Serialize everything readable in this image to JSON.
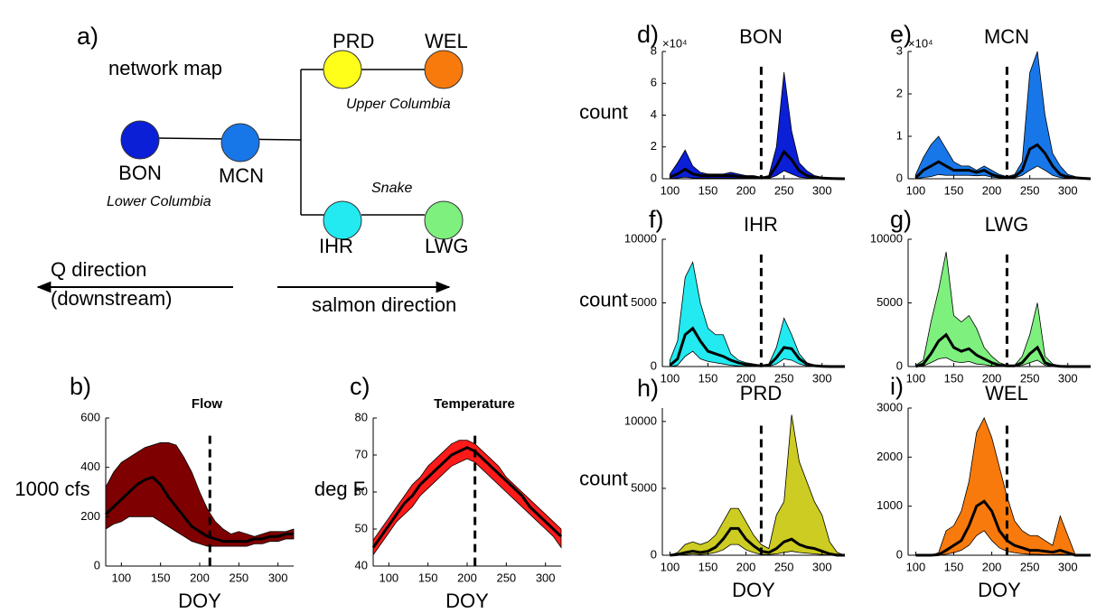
{
  "network_map": {
    "label": "a)",
    "title": "network map",
    "nodes": [
      {
        "label": "BON",
        "color": "#0a1fd6"
      },
      {
        "label": "MCN",
        "color": "#1877e8"
      },
      {
        "label": "PRD",
        "color": "#ffff1a"
      },
      {
        "label": "WEL",
        "color": "#f97a0c"
      },
      {
        "label": "IHR",
        "color": "#22eaf0"
      },
      {
        "label": "LWG",
        "color": "#7ef07e"
      }
    ],
    "regions": [
      "Lower Columbia",
      "Upper Columbia",
      "Snake"
    ],
    "arrows": [
      "Q direction",
      "(downstream)",
      "salmon direction"
    ]
  },
  "chart_data": [
    {
      "type": "band",
      "label": "b)",
      "title": "Flow",
      "ylabel": "1000 cfs",
      "xlabel": "DOY",
      "color": "#7f0000",
      "x": [
        80,
        90,
        100,
        110,
        120,
        130,
        140,
        150,
        160,
        170,
        180,
        190,
        200,
        210,
        220,
        230,
        240,
        250,
        260,
        270,
        280,
        290,
        300,
        310,
        320
      ],
      "upper": [
        320,
        380,
        420,
        440,
        460,
        480,
        490,
        500,
        500,
        490,
        440,
        380,
        300,
        230,
        180,
        150,
        130,
        140,
        130,
        120,
        130,
        140,
        140,
        140,
        150
      ],
      "median": [
        210,
        240,
        270,
        300,
        330,
        350,
        360,
        330,
        280,
        240,
        200,
        160,
        140,
        120,
        110,
        100,
        100,
        100,
        100,
        110,
        110,
        120,
        120,
        130,
        130
      ],
      "lower": [
        150,
        170,
        180,
        200,
        200,
        200,
        200,
        180,
        160,
        140,
        120,
        100,
        90,
        80,
        80,
        80,
        80,
        80,
        80,
        90,
        90,
        100,
        100,
        110,
        110
      ],
      "vline": 213,
      "xlim": [
        80,
        320
      ],
      "xticks": [
        100,
        150,
        200,
        250,
        300
      ],
      "ylim": [
        0,
        600
      ],
      "yticks": [
        0,
        200,
        400,
        600
      ]
    },
    {
      "type": "band",
      "label": "c)",
      "title": "Temperature",
      "ylabel": "deg F",
      "xlabel": "DOY",
      "color": "#ff1a1a",
      "x": [
        80,
        90,
        100,
        110,
        120,
        130,
        140,
        150,
        160,
        170,
        180,
        190,
        200,
        210,
        220,
        230,
        240,
        250,
        260,
        270,
        280,
        290,
        300,
        310,
        320
      ],
      "upper": [
        47,
        50,
        53,
        56,
        59,
        62,
        64,
        67,
        69,
        71,
        73,
        74,
        74,
        73,
        71,
        69,
        67,
        64,
        62,
        60,
        58,
        56,
        54,
        52,
        50
      ],
      "median": [
        45,
        48,
        51,
        54,
        57,
        59,
        62,
        64,
        66,
        68,
        70,
        71,
        72,
        71,
        69,
        67,
        65,
        63,
        61,
        59,
        56,
        54,
        52,
        50,
        48
      ],
      "lower": [
        43,
        46,
        49,
        52,
        54,
        56,
        59,
        61,
        63,
        65,
        67,
        68,
        69,
        68,
        66,
        64,
        62,
        60,
        58,
        56,
        54,
        52,
        50,
        48,
        45
      ],
      "vline": 210,
      "xlim": [
        80,
        320
      ],
      "xticks": [
        100,
        150,
        200,
        250,
        300
      ],
      "ylim": [
        40,
        80
      ],
      "yticks": [
        40,
        50,
        60,
        70,
        80
      ]
    },
    {
      "type": "band",
      "label": "d)",
      "title": "BON",
      "ylabel": "count",
      "y_multiplier": "×10⁴",
      "color": "#0a1fd6",
      "x": [
        100,
        110,
        120,
        130,
        140,
        150,
        160,
        170,
        180,
        190,
        200,
        210,
        220,
        230,
        240,
        250,
        260,
        270,
        280,
        290,
        300,
        310,
        320,
        330
      ],
      "upper": [
        3000,
        10000,
        18000,
        8000,
        4000,
        3000,
        3000,
        3000,
        4000,
        3000,
        2000,
        2000,
        1000,
        2000,
        20000,
        67000,
        30000,
        10000,
        5000,
        2000,
        1000,
        500,
        200,
        0
      ],
      "median": [
        1000,
        3000,
        6000,
        3000,
        2000,
        2000,
        2000,
        2000,
        2000,
        1500,
        1000,
        1000,
        500,
        1000,
        8000,
        17000,
        12000,
        5000,
        2000,
        800,
        400,
        200,
        100,
        0
      ],
      "lower": [
        0,
        500,
        1000,
        500,
        500,
        500,
        500,
        500,
        500,
        300,
        200,
        200,
        100,
        200,
        2000,
        5000,
        3000,
        1000,
        500,
        200,
        100,
        0,
        0,
        0
      ],
      "vline": 220,
      "xlim": [
        90,
        330
      ],
      "xticks": [
        100,
        150,
        200,
        250,
        300
      ],
      "ylim": [
        0,
        80000
      ],
      "yticks": [
        0,
        {
          "value": 20000,
          "label": "2"
        },
        {
          "value": 40000,
          "label": "4"
        },
        {
          "value": 60000,
          "label": "6"
        },
        {
          "value": 80000,
          "label": "8"
        }
      ]
    },
    {
      "type": "band",
      "label": "e)",
      "title": "MCN",
      "y_multiplier": "×10⁴",
      "color": "#1877e8",
      "x": [
        100,
        110,
        120,
        130,
        140,
        150,
        160,
        170,
        180,
        190,
        200,
        210,
        220,
        230,
        240,
        250,
        260,
        270,
        280,
        290,
        300,
        310,
        320,
        330
      ],
      "upper": [
        1000,
        5000,
        8000,
        10000,
        7000,
        4000,
        3000,
        3000,
        2000,
        3000,
        2000,
        1000,
        500,
        1000,
        4000,
        25000,
        30000,
        15000,
        6000,
        3000,
        1000,
        500,
        200,
        0
      ],
      "median": [
        200,
        2000,
        3000,
        4000,
        3000,
        2000,
        2000,
        2000,
        1500,
        2000,
        1000,
        500,
        200,
        500,
        2000,
        7000,
        8000,
        6000,
        3000,
        1000,
        400,
        200,
        100,
        0
      ],
      "lower": [
        0,
        300,
        500,
        1000,
        800,
        800,
        800,
        800,
        700,
        800,
        400,
        200,
        100,
        200,
        800,
        2000,
        3000,
        2000,
        800,
        300,
        100,
        0,
        0,
        0
      ],
      "vline": 220,
      "xlim": [
        90,
        330
      ],
      "xticks": [
        100,
        150,
        200,
        250,
        300
      ],
      "ylim": [
        0,
        30000
      ],
      "yticks": [
        0,
        {
          "value": 10000,
          "label": "1"
        },
        {
          "value": 20000,
          "label": "2"
        },
        {
          "value": 30000,
          "label": "3"
        }
      ]
    },
    {
      "type": "band",
      "label": "f)",
      "title": "IHR",
      "ylabel": "count",
      "color": "#22eaf0",
      "x": [
        100,
        110,
        120,
        130,
        140,
        150,
        160,
        170,
        180,
        190,
        200,
        210,
        220,
        230,
        240,
        250,
        260,
        270,
        280,
        290,
        300,
        310,
        320,
        330
      ],
      "upper": [
        500,
        2000,
        7000,
        8200,
        5000,
        3000,
        2500,
        2500,
        1000,
        500,
        300,
        200,
        100,
        200,
        1500,
        3800,
        2500,
        1000,
        300,
        100,
        50,
        0,
        0,
        0
      ],
      "median": [
        100,
        600,
        2500,
        3000,
        2000,
        1200,
        1000,
        800,
        500,
        300,
        150,
        100,
        50,
        100,
        700,
        1500,
        1400,
        600,
        200,
        60,
        20,
        0,
        0,
        0
      ],
      "lower": [
        0,
        100,
        800,
        1200,
        600,
        400,
        300,
        200,
        100,
        50,
        20,
        10,
        0,
        20,
        200,
        600,
        500,
        200,
        50,
        10,
        0,
        0,
        0,
        0
      ],
      "vline": 220,
      "xlim": [
        90,
        330
      ],
      "xticks": [
        100,
        150,
        200,
        250,
        300
      ],
      "ylim": [
        0,
        10000
      ],
      "yticks": [
        0,
        5000,
        10000
      ]
    },
    {
      "type": "band",
      "label": "g)",
      "title": "LWG",
      "color": "#7ef07e",
      "x": [
        100,
        110,
        120,
        130,
        140,
        150,
        160,
        170,
        180,
        190,
        200,
        210,
        220,
        230,
        240,
        250,
        260,
        270,
        280,
        290,
        300,
        310,
        320,
        330
      ],
      "upper": [
        100,
        500,
        3500,
        6000,
        9000,
        4000,
        3500,
        4000,
        3000,
        1500,
        800,
        300,
        100,
        100,
        800,
        2500,
        5000,
        800,
        200,
        50,
        0,
        0,
        0,
        0
      ],
      "median": [
        0,
        200,
        1000,
        2000,
        2500,
        1500,
        1200,
        1400,
        900,
        600,
        300,
        100,
        50,
        50,
        300,
        1000,
        1500,
        300,
        80,
        20,
        0,
        0,
        0,
        0
      ],
      "lower": [
        0,
        50,
        300,
        600,
        700,
        400,
        300,
        400,
        200,
        150,
        50,
        20,
        0,
        0,
        100,
        300,
        500,
        100,
        20,
        0,
        0,
        0,
        0,
        0
      ],
      "vline": 220,
      "xlim": [
        90,
        330
      ],
      "xticks": [
        100,
        150,
        200,
        250,
        300
      ],
      "ylim": [
        0,
        10000
      ],
      "yticks": [
        0,
        5000,
        10000
      ]
    },
    {
      "type": "band",
      "label": "h)",
      "title": "PRD",
      "ylabel": "count",
      "xlabel": "DOY",
      "color": "#cccc22",
      "x": [
        100,
        110,
        120,
        130,
        140,
        150,
        160,
        170,
        180,
        190,
        200,
        210,
        220,
        230,
        240,
        250,
        260,
        270,
        280,
        290,
        300,
        310,
        320,
        330
      ],
      "upper": [
        0,
        200,
        800,
        1000,
        800,
        1000,
        1500,
        2500,
        3500,
        3500,
        2500,
        1500,
        800,
        500,
        3000,
        4000,
        10500,
        7000,
        5500,
        4000,
        3000,
        1000,
        200,
        0
      ],
      "median": [
        0,
        50,
        200,
        300,
        200,
        300,
        600,
        1200,
        2000,
        2000,
        1200,
        700,
        300,
        200,
        500,
        1000,
        1200,
        800,
        600,
        500,
        300,
        100,
        0,
        0
      ],
      "lower": [
        0,
        0,
        50,
        100,
        50,
        100,
        200,
        400,
        800,
        800,
        400,
        200,
        50,
        50,
        100,
        200,
        300,
        200,
        150,
        100,
        50,
        0,
        0,
        0
      ],
      "vline": 220,
      "xlim": [
        90,
        330
      ],
      "xticks": [
        100,
        150,
        200,
        250,
        300
      ],
      "ylim": [
        0,
        11000
      ],
      "yticks": [
        0,
        5000,
        10000
      ]
    },
    {
      "type": "band",
      "label": "i)",
      "title": "WEL",
      "xlabel": "DOY",
      "color": "#f97a0c",
      "x": [
        100,
        110,
        120,
        130,
        140,
        150,
        160,
        170,
        180,
        190,
        200,
        210,
        220,
        230,
        240,
        250,
        260,
        270,
        280,
        290,
        300,
        310,
        320,
        330
      ],
      "upper": [
        0,
        0,
        0,
        50,
        500,
        600,
        900,
        1500,
        2500,
        2800,
        2400,
        1800,
        1200,
        700,
        500,
        400,
        400,
        300,
        200,
        800,
        400,
        0,
        0,
        0
      ],
      "median": [
        0,
        0,
        0,
        10,
        100,
        200,
        300,
        600,
        1000,
        1100,
        900,
        500,
        300,
        200,
        150,
        100,
        100,
        80,
        60,
        100,
        50,
        0,
        0,
        0
      ],
      "lower": [
        0,
        0,
        0,
        0,
        20,
        50,
        100,
        200,
        400,
        500,
        300,
        150,
        80,
        50,
        30,
        20,
        20,
        10,
        10,
        20,
        10,
        0,
        0,
        0
      ],
      "vline": 220,
      "xlim": [
        90,
        330
      ],
      "xticks": [
        100,
        150,
        200,
        250,
        300
      ],
      "ylim": [
        0,
        3000
      ],
      "yticks": [
        0,
        1000,
        2000,
        3000
      ]
    }
  ]
}
